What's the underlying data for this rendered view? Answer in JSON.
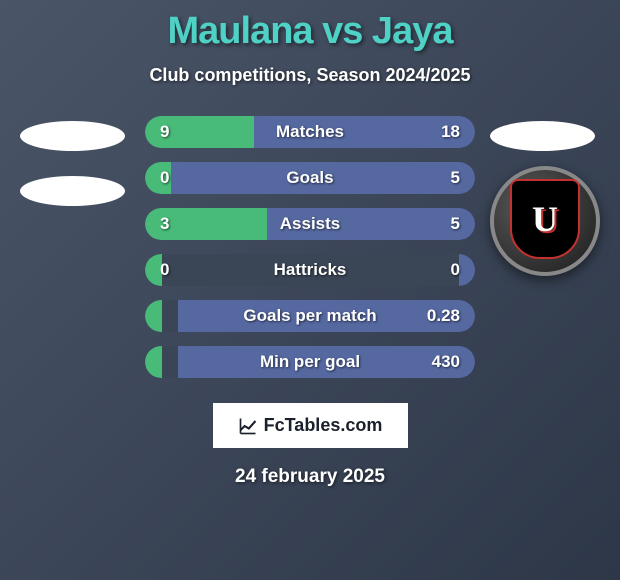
{
  "title": "Maulana vs Jaya",
  "subtitle": "Club competitions, Season 2024/2025",
  "colors": {
    "title_color": "#4fd1c5",
    "bar_left": "#48bb78",
    "bar_right": "#5568a0",
    "bar_bg": "#3a4556",
    "text": "#ffffff",
    "bg_gradient_start": "#4a5568",
    "bg_gradient_end": "#2d3748"
  },
  "typography": {
    "title_fontsize": 38,
    "subtitle_fontsize": 18,
    "bar_label_fontsize": 17,
    "footer_date_fontsize": 19
  },
  "bars": [
    {
      "label": "Matches",
      "left": "9",
      "right": "18",
      "left_pct": 33,
      "right_pct": 67
    },
    {
      "label": "Goals",
      "left": "0",
      "right": "5",
      "left_pct": 8,
      "right_pct": 92
    },
    {
      "label": "Assists",
      "left": "3",
      "right": "5",
      "left_pct": 37,
      "right_pct": 63
    },
    {
      "label": "Hattricks",
      "left": "0",
      "right": "0",
      "left_pct": 5,
      "right_pct": 5
    },
    {
      "label": "Goals per match",
      "left": "",
      "right": "0.28",
      "left_pct": 5,
      "right_pct": 90
    },
    {
      "label": "Min per goal",
      "left": "",
      "right": "430",
      "left_pct": 5,
      "right_pct": 90
    }
  ],
  "footer": {
    "brand": "FcTables.com",
    "date": "24 february 2025"
  },
  "badge": {
    "letter": "U",
    "border_color": "#c53030",
    "bg_color": "#000000"
  }
}
